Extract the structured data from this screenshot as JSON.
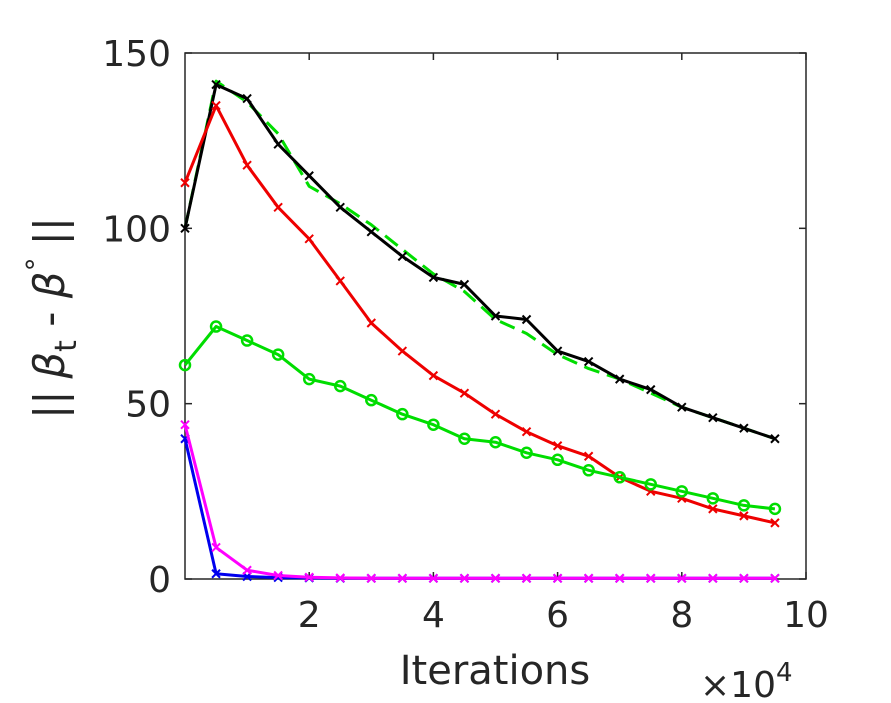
{
  "chart_data": {
    "type": "line",
    "xlabel": "Iterations",
    "x_exponent": "×10",
    "x_exponent_power": "4",
    "ylabel": {
      "bars_left": "||",
      "symbol1": "β",
      "sub1": "t",
      "minus": " - ",
      "symbol2": "β",
      "sup2": "°",
      "bars_right": "||"
    },
    "xlim": [
      0,
      10
    ],
    "ylim": [
      0,
      150
    ],
    "xticks": [
      2,
      4,
      6,
      8,
      10
    ],
    "xtick_labels": [
      "2",
      "4",
      "6",
      "8",
      "10"
    ],
    "yticks": [
      0,
      50,
      100,
      150
    ],
    "ytick_labels": [
      "0",
      "50",
      "100",
      "150"
    ],
    "grid": false,
    "series": [
      {
        "color": "#00dd00",
        "style": "dashed",
        "marker": "none",
        "x": [
          0,
          0.5,
          1,
          1.5,
          2,
          2.5,
          3,
          3.5,
          4,
          4.5,
          5,
          5.5,
          6,
          6.5,
          7,
          7.5,
          8,
          8.5,
          9,
          9.5
        ],
        "values": [
          100,
          142,
          136,
          127,
          112,
          107,
          101,
          94,
          87,
          82,
          74,
          70,
          64,
          60,
          57,
          53,
          49,
          46,
          43,
          40
        ]
      },
      {
        "color": "#000000",
        "style": "solid",
        "marker": "x",
        "x": [
          0,
          0.5,
          1,
          1.5,
          2,
          2.5,
          3,
          3.5,
          4,
          4.5,
          5,
          5.5,
          6,
          6.5,
          7,
          7.5,
          8,
          8.5,
          9,
          9.5
        ],
        "values": [
          100,
          141,
          137,
          124,
          115,
          106,
          99,
          92,
          86,
          84,
          75,
          74,
          65,
          62,
          57,
          54,
          49,
          46,
          43,
          40
        ]
      },
      {
        "color": "#ee0000",
        "style": "solid",
        "marker": "x",
        "x": [
          0,
          0.5,
          1,
          1.5,
          2,
          2.5,
          3,
          3.5,
          4,
          4.5,
          5,
          5.5,
          6,
          6.5,
          7,
          7.5,
          8,
          8.5,
          9,
          9.5
        ],
        "values": [
          113,
          135,
          118,
          106,
          97,
          85,
          73,
          65,
          58,
          53,
          47,
          42,
          38,
          35,
          29,
          25,
          23,
          20,
          18,
          16
        ]
      },
      {
        "color": "#00dd00",
        "style": "solid",
        "marker": "o",
        "x": [
          0,
          0.5,
          1,
          1.5,
          2,
          2.5,
          3,
          3.5,
          4,
          4.5,
          5,
          5.5,
          6,
          6.5,
          7,
          7.5,
          8,
          8.5,
          9,
          9.5
        ],
        "values": [
          61,
          72,
          68,
          64,
          57,
          55,
          51,
          47,
          44,
          40,
          39,
          36,
          34,
          31,
          29,
          27,
          25,
          23,
          21,
          20
        ]
      },
      {
        "color": "#0000ee",
        "style": "solid",
        "marker": "x",
        "x": [
          0,
          0.5,
          1,
          1.5,
          2,
          2.5,
          3,
          3.5,
          4,
          4.5,
          5,
          5.5,
          6,
          6.5,
          7,
          7.5,
          8,
          8.5,
          9,
          9.5
        ],
        "values": [
          40,
          1.5,
          0.7,
          0.4,
          0.3,
          0.2,
          0.2,
          0.2,
          0.2,
          0.2,
          0.2,
          0.2,
          0.2,
          0.2,
          0.2,
          0.2,
          0.2,
          0.2,
          0.2,
          0.2
        ]
      },
      {
        "color": "#ff00ff",
        "style": "solid",
        "marker": "x",
        "x": [
          0,
          0.5,
          1,
          1.5,
          2,
          2.5,
          3,
          3.5,
          4,
          4.5,
          5,
          5.5,
          6,
          6.5,
          7,
          7.5,
          8,
          8.5,
          9,
          9.5
        ],
        "values": [
          44,
          9,
          2.5,
          1,
          0.5,
          0.3,
          0.2,
          0.2,
          0.2,
          0.2,
          0.2,
          0.2,
          0.2,
          0.2,
          0.2,
          0.2,
          0.2,
          0.2,
          0.2,
          0.2
        ]
      }
    ]
  }
}
